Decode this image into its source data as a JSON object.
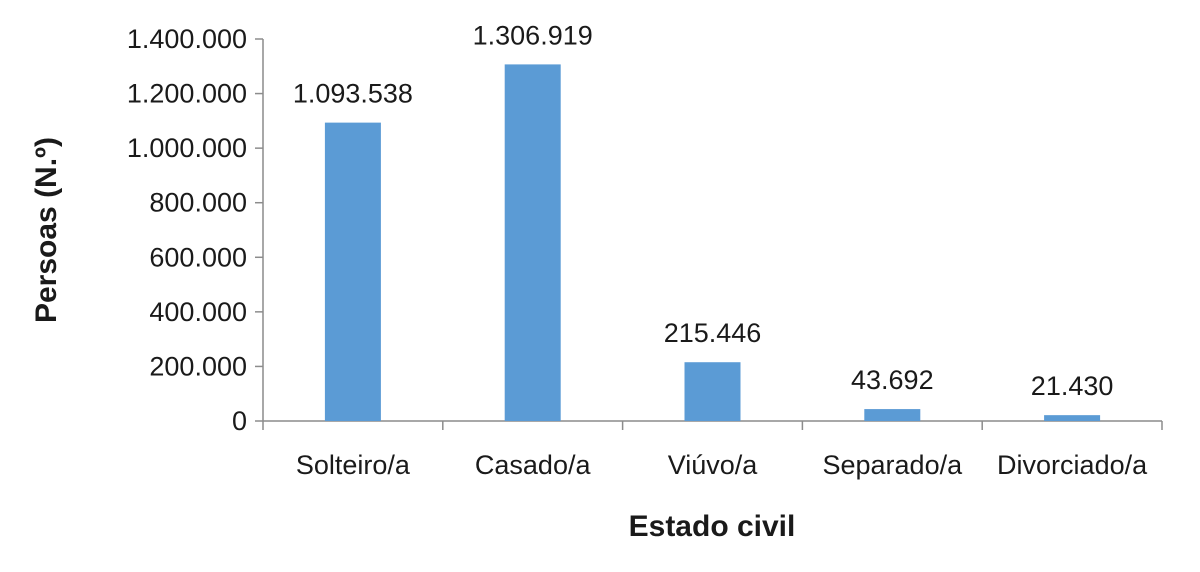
{
  "chart_data": {
    "type": "bar",
    "categories": [
      "Solteiro/a",
      "Casado/a",
      "Viúvo/a",
      "Separado/a",
      "Divorciado/a"
    ],
    "values": [
      1093538,
      1306919,
      215446,
      43692,
      21430
    ],
    "data_labels": [
      "1.093.538",
      "1.306.919",
      "215.446",
      "43.692",
      "21.430"
    ],
    "xlabel": "Estado civil",
    "ylabel": "Persoas (N.º)",
    "ylim": [
      0,
      1400000
    ],
    "yticks": [
      0,
      200000,
      400000,
      600000,
      800000,
      1000000,
      1200000,
      1400000
    ],
    "ytick_labels": [
      "0",
      "200.000",
      "400.000",
      "600.000",
      "800.000",
      "1.000.000",
      "1.200.000",
      "1.400.000"
    ],
    "bar_color": "#5b9bd5",
    "grid": false,
    "legend": "none"
  }
}
